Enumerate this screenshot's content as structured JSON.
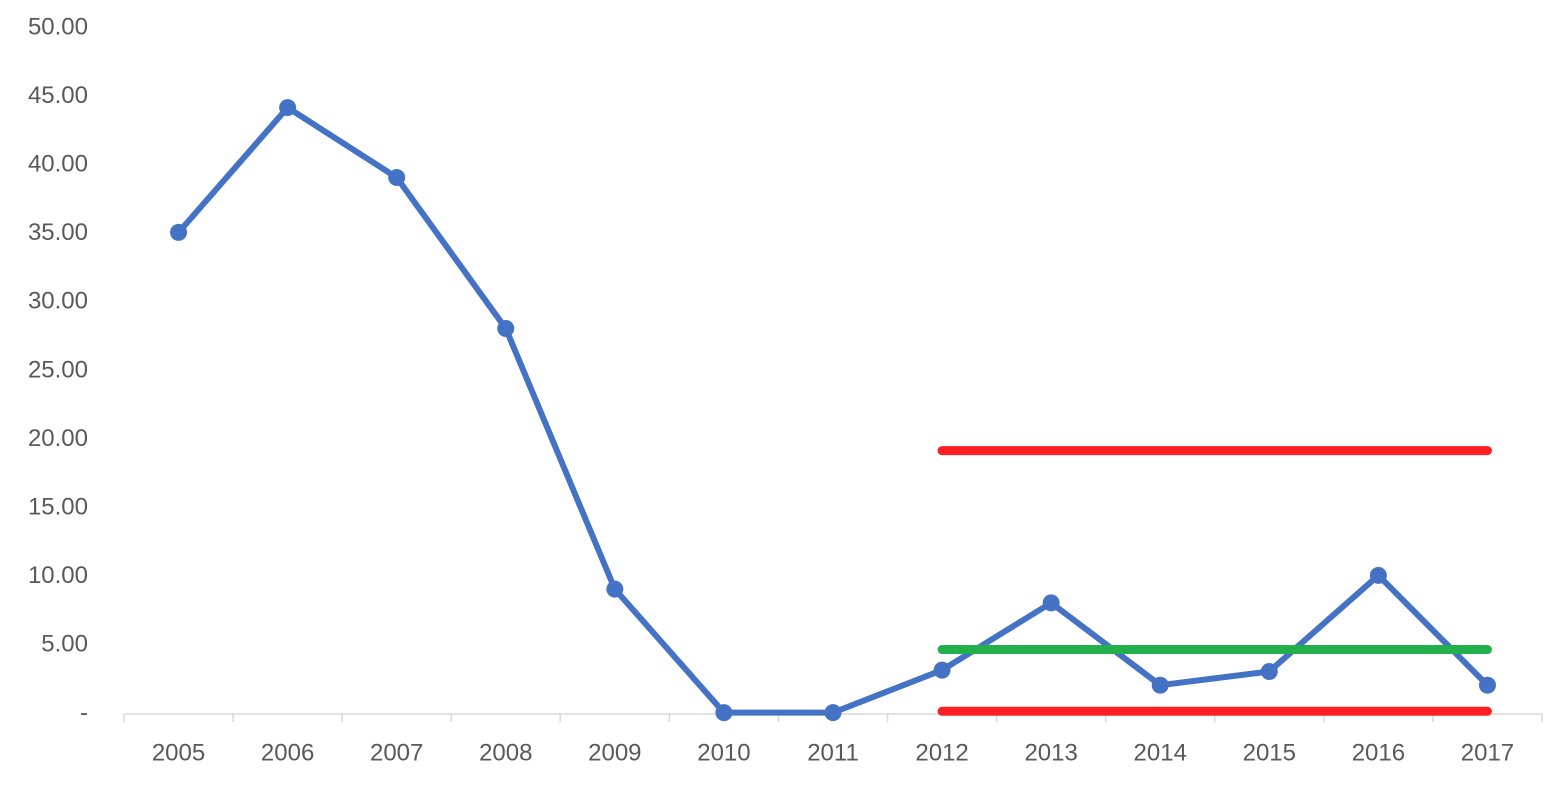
{
  "chart_data": {
    "type": "line",
    "categories": [
      "2005",
      "2006",
      "2007",
      "2008",
      "2009",
      "2010",
      "2011",
      "2012",
      "2013",
      "2014",
      "2015",
      "2016",
      "2017"
    ],
    "series": [
      {
        "color": "#4472c4",
        "marker": true,
        "values": [
          35.1,
          44.2,
          39.1,
          28.1,
          9.1,
          0.1,
          0.1,
          3.2,
          8.1,
          2.1,
          3.1,
          10.1,
          2.1
        ]
      },
      {
        "color": "#ff1e24",
        "marker": false,
        "values": [
          null,
          null,
          null,
          null,
          null,
          null,
          null,
          19.2,
          19.2,
          19.2,
          19.2,
          19.2,
          19.2
        ]
      },
      {
        "color": "#22b04b",
        "marker": false,
        "values": [
          null,
          null,
          null,
          null,
          null,
          null,
          null,
          4.7,
          4.7,
          4.7,
          4.7,
          4.7,
          4.7
        ]
      },
      {
        "color": "#ff1e24",
        "marker": false,
        "values": [
          null,
          null,
          null,
          null,
          null,
          null,
          null,
          0.2,
          0.2,
          0.2,
          0.2,
          0.2,
          0.2
        ]
      }
    ],
    "ylim": [
      0,
      50
    ],
    "yticks": [
      {
        "value": 0,
        "label": "-"
      },
      {
        "value": 5,
        "label": "5.00"
      },
      {
        "value": 10,
        "label": "10.00"
      },
      {
        "value": 15,
        "label": "15.00"
      },
      {
        "value": 20,
        "label": "20.00"
      },
      {
        "value": 25,
        "label": "25.00"
      },
      {
        "value": 30,
        "label": "30.00"
      },
      {
        "value": 35,
        "label": "35.00"
      },
      {
        "value": 40,
        "label": "40.00"
      },
      {
        "value": 45,
        "label": "45.00"
      },
      {
        "value": 50,
        "label": "50.00"
      }
    ],
    "grid": false
  }
}
